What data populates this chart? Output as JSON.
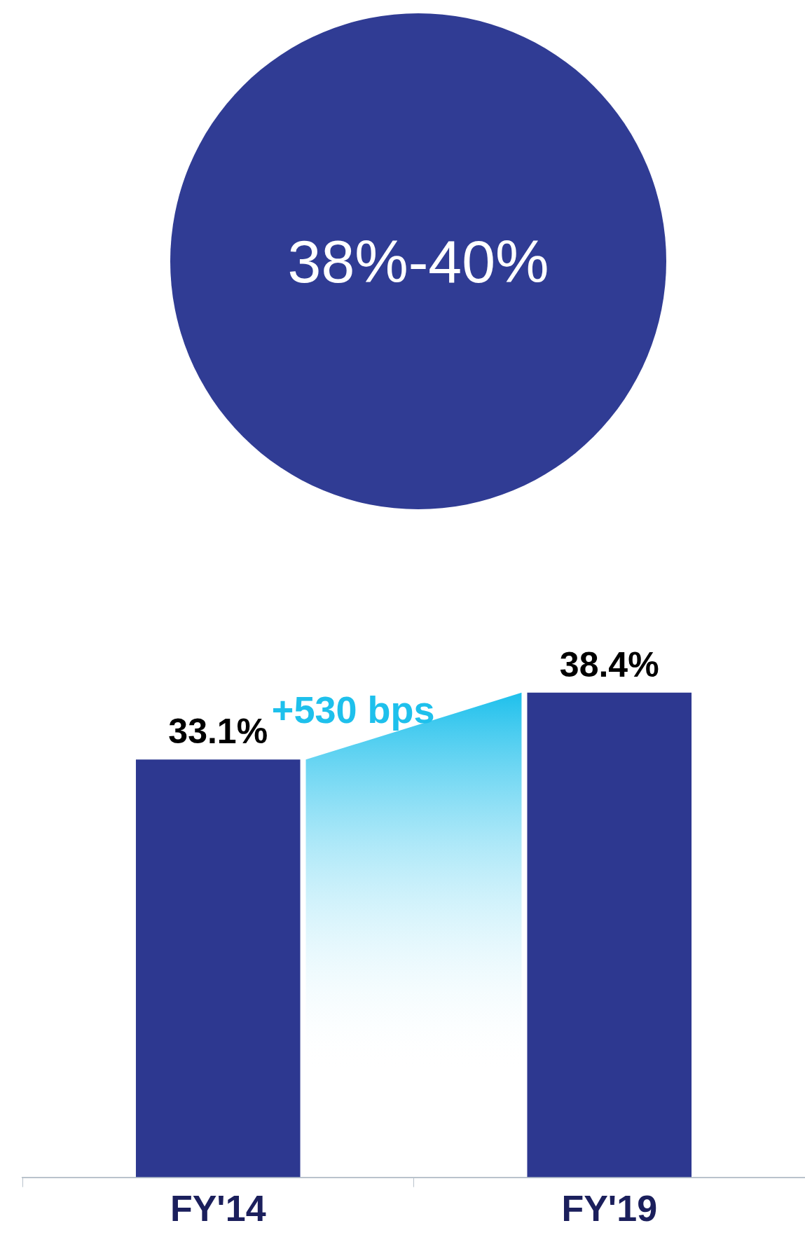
{
  "chart_data": {
    "type": "bar",
    "categories": [
      "FY'14",
      "FY'19"
    ],
    "values": [
      33.1,
      38.4
    ],
    "value_labels": [
      "33.1%",
      "38.4%"
    ],
    "color": "#2d3890",
    "tick_labels": "x",
    "grid": false,
    "legend": false,
    "annotations": [
      "38%-40%",
      "+530 bps"
    ]
  }
}
